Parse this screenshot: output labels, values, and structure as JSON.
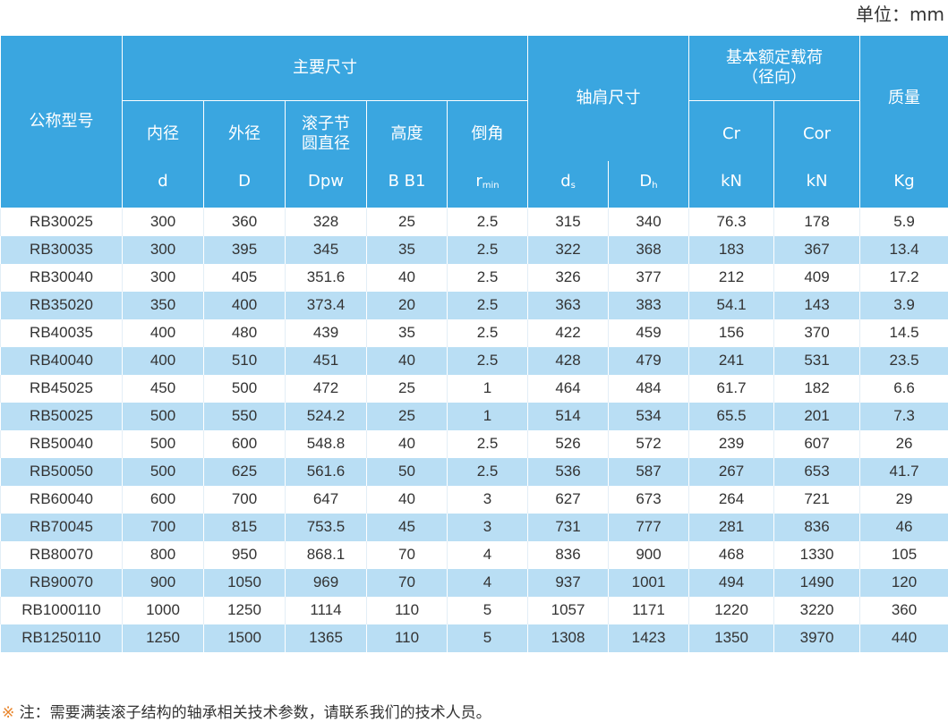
{
  "unit": "单位：mm",
  "table": {
    "header": {
      "model": "公称型号",
      "main_dims": "主要尺寸",
      "shoulder": "轴肩尺寸",
      "load": [
        "基本额定载荷",
        "（径向）"
      ],
      "mass": "质量",
      "dim_columns": [
        {
          "name": [
            "内径"
          ],
          "symbol": {
            "base": "d"
          }
        },
        {
          "name": [
            "外径"
          ],
          "symbol": {
            "base": "D"
          }
        },
        {
          "name": [
            "滚子节",
            "圆直径"
          ],
          "symbol": {
            "base": "Dpw"
          }
        },
        {
          "name": [
            "高度"
          ],
          "symbol": {
            "base": "B B1"
          }
        },
        {
          "name": [
            "倒角"
          ],
          "symbol": {
            "base": "r",
            "sub": "min"
          }
        }
      ],
      "shoulder_columns": [
        {
          "base": "d",
          "sub": "s"
        },
        {
          "base": "D",
          "sub": "h"
        }
      ],
      "load_columns": [
        {
          "name": "Cr",
          "unit": "kN"
        },
        {
          "name": "Cor",
          "unit": "kN"
        }
      ],
      "mass_unit": "Kg"
    },
    "rows": [
      [
        "RB30025",
        "300",
        "360",
        "328",
        "25",
        "2.5",
        "315",
        "340",
        "76.3",
        "178",
        "5.9"
      ],
      [
        "RB30035",
        "300",
        "395",
        "345",
        "35",
        "2.5",
        "322",
        "368",
        "183",
        "367",
        "13.4"
      ],
      [
        "RB30040",
        "300",
        "405",
        "351.6",
        "40",
        "2.5",
        "326",
        "377",
        "212",
        "409",
        "17.2"
      ],
      [
        "RB35020",
        "350",
        "400",
        "373.4",
        "20",
        "2.5",
        "363",
        "383",
        "54.1",
        "143",
        "3.9"
      ],
      [
        "RB40035",
        "400",
        "480",
        "439",
        "35",
        "2.5",
        "422",
        "459",
        "156",
        "370",
        "14.5"
      ],
      [
        "RB40040",
        "400",
        "510",
        "451",
        "40",
        "2.5",
        "428",
        "479",
        "241",
        "531",
        "23.5"
      ],
      [
        "RB45025",
        "450",
        "500",
        "472",
        "25",
        "1",
        "464",
        "484",
        "61.7",
        "182",
        "6.6"
      ],
      [
        "RB50025",
        "500",
        "550",
        "524.2",
        "25",
        "1",
        "514",
        "534",
        "65.5",
        "201",
        "7.3"
      ],
      [
        "RB50040",
        "500",
        "600",
        "548.8",
        "40",
        "2.5",
        "526",
        "572",
        "239",
        "607",
        "26"
      ],
      [
        "RB50050",
        "500",
        "625",
        "561.6",
        "50",
        "2.5",
        "536",
        "587",
        "267",
        "653",
        "41.7"
      ],
      [
        "RB60040",
        "600",
        "700",
        "647",
        "40",
        "3",
        "627",
        "673",
        "264",
        "721",
        "29"
      ],
      [
        "RB70045",
        "700",
        "815",
        "753.5",
        "45",
        "3",
        "731",
        "777",
        "281",
        "836",
        "46"
      ],
      [
        "RB80070",
        "800",
        "950",
        "868.1",
        "70",
        "4",
        "836",
        "900",
        "468",
        "1330",
        "105"
      ],
      [
        "RB90070",
        "900",
        "1050",
        "969",
        "70",
        "4",
        "937",
        "1001",
        "494",
        "1490",
        "120"
      ],
      [
        "RB1000110",
        "1000",
        "1250",
        "1114",
        "110",
        "5",
        "1057",
        "1171",
        "1220",
        "3220",
        "360"
      ],
      [
        "RB1250110",
        "1250",
        "1500",
        "1365",
        "110",
        "5",
        "1308",
        "1423",
        "1350",
        "3970",
        "440"
      ]
    ]
  },
  "note_mark": "※",
  "note": "注：需要满装滚子结构的轴承相关技术参数，请联系我们的技术人员。"
}
